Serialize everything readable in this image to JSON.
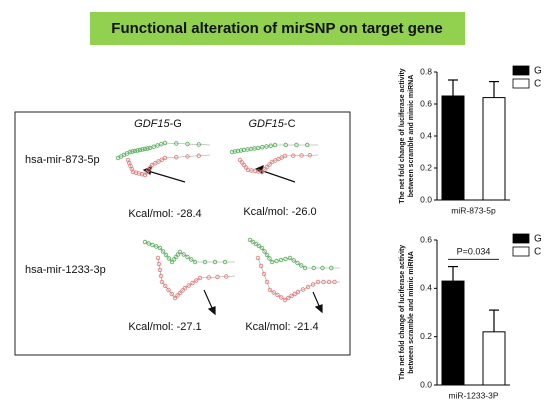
{
  "header": {
    "title": "Functional alteration of mirSNP on target gene"
  },
  "panel": {
    "columns": [
      {
        "gene": "GDF15",
        "allele": "-G"
      },
      {
        "gene": "GDF15",
        "allele": "-C"
      }
    ],
    "rows": [
      {
        "name": "hsa-mir-873-5p",
        "energies": [
          "Kcal/mol: -28.4",
          "Kcal/mol: -26.0"
        ]
      },
      {
        "name": "hsa-mir-1233-3p",
        "energies": [
          "Kcal/mol: -27.1",
          "Kcal/mol: -21.4"
        ]
      }
    ]
  },
  "chart_data": [
    {
      "type": "bar",
      "ylabel_lines": [
        "The net fold change of luciferase activity",
        "between scramble and mimic miRNA"
      ],
      "categories": [
        "miR-873-5p"
      ],
      "series": [
        {
          "name": "G",
          "color": "#000000",
          "values": [
            0.65
          ],
          "errors": [
            0.1
          ]
        },
        {
          "name": "C",
          "color": "#ffffff",
          "values": [
            0.64
          ],
          "errors": [
            0.1
          ]
        }
      ],
      "ylim": [
        0,
        0.8
      ],
      "yticks": [
        {
          "value": 0,
          "label": "0.0"
        },
        0.2,
        0.4,
        0.6,
        0.8
      ],
      "legend": "right"
    },
    {
      "type": "bar",
      "ylabel_lines": [
        "The net fold change of luciferase activity",
        "between scramble and mimic miRNA"
      ],
      "categories": [
        "miR-1233-3P"
      ],
      "series": [
        {
          "name": "G",
          "color": "#000000",
          "values": [
            0.43
          ],
          "errors": [
            0.06
          ]
        },
        {
          "name": "C",
          "color": "#ffffff",
          "values": [
            0.22
          ],
          "errors": [
            0.09
          ]
        }
      ],
      "ylim": [
        0,
        0.6
      ],
      "yticks": [
        {
          "value": 0,
          "label": "0.0"
        },
        0.2,
        0.4,
        0.6
      ],
      "annotation": "P=0.034",
      "legend": "right"
    }
  ]
}
